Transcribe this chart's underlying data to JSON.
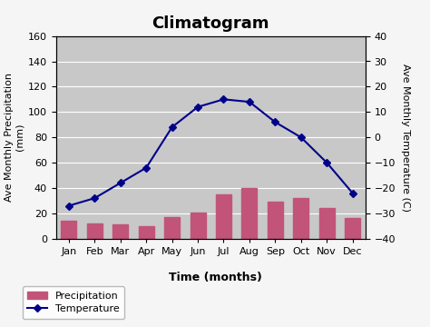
{
  "title": "Climatogram",
  "months": [
    "Jan",
    "Feb",
    "Mar",
    "Apr",
    "May",
    "Jun",
    "Jul",
    "Aug",
    "Sep",
    "Oct",
    "Nov",
    "Dec"
  ],
  "precipitation": [
    14,
    12,
    11,
    10,
    17,
    21,
    35,
    40,
    29,
    32,
    24,
    16
  ],
  "temperature": [
    -27,
    -24,
    -18,
    -12,
    4,
    12,
    15,
    14,
    6,
    0,
    -10,
    -22
  ],
  "precip_color": "#c2547a",
  "temp_color": "#00008b",
  "temp_marker": "D",
  "left_ylim": [
    0,
    160
  ],
  "right_ylim": [
    -40,
    40
  ],
  "left_yticks": [
    0,
    20,
    40,
    60,
    80,
    100,
    120,
    140,
    160
  ],
  "right_yticks": [
    -40,
    -30,
    -20,
    -10,
    0,
    10,
    20,
    30,
    40
  ],
  "xlabel": "Time (months)",
  "ylabel_left": "Ave Monthly Precipitation\n(mm)",
  "ylabel_right": "Ave Monthly Temperature (C)",
  "bg_color": "#c8c8c8",
  "fig_bg_color": "#f5f5f5",
  "title_fontsize": 13,
  "label_fontsize": 8,
  "tick_fontsize": 8
}
